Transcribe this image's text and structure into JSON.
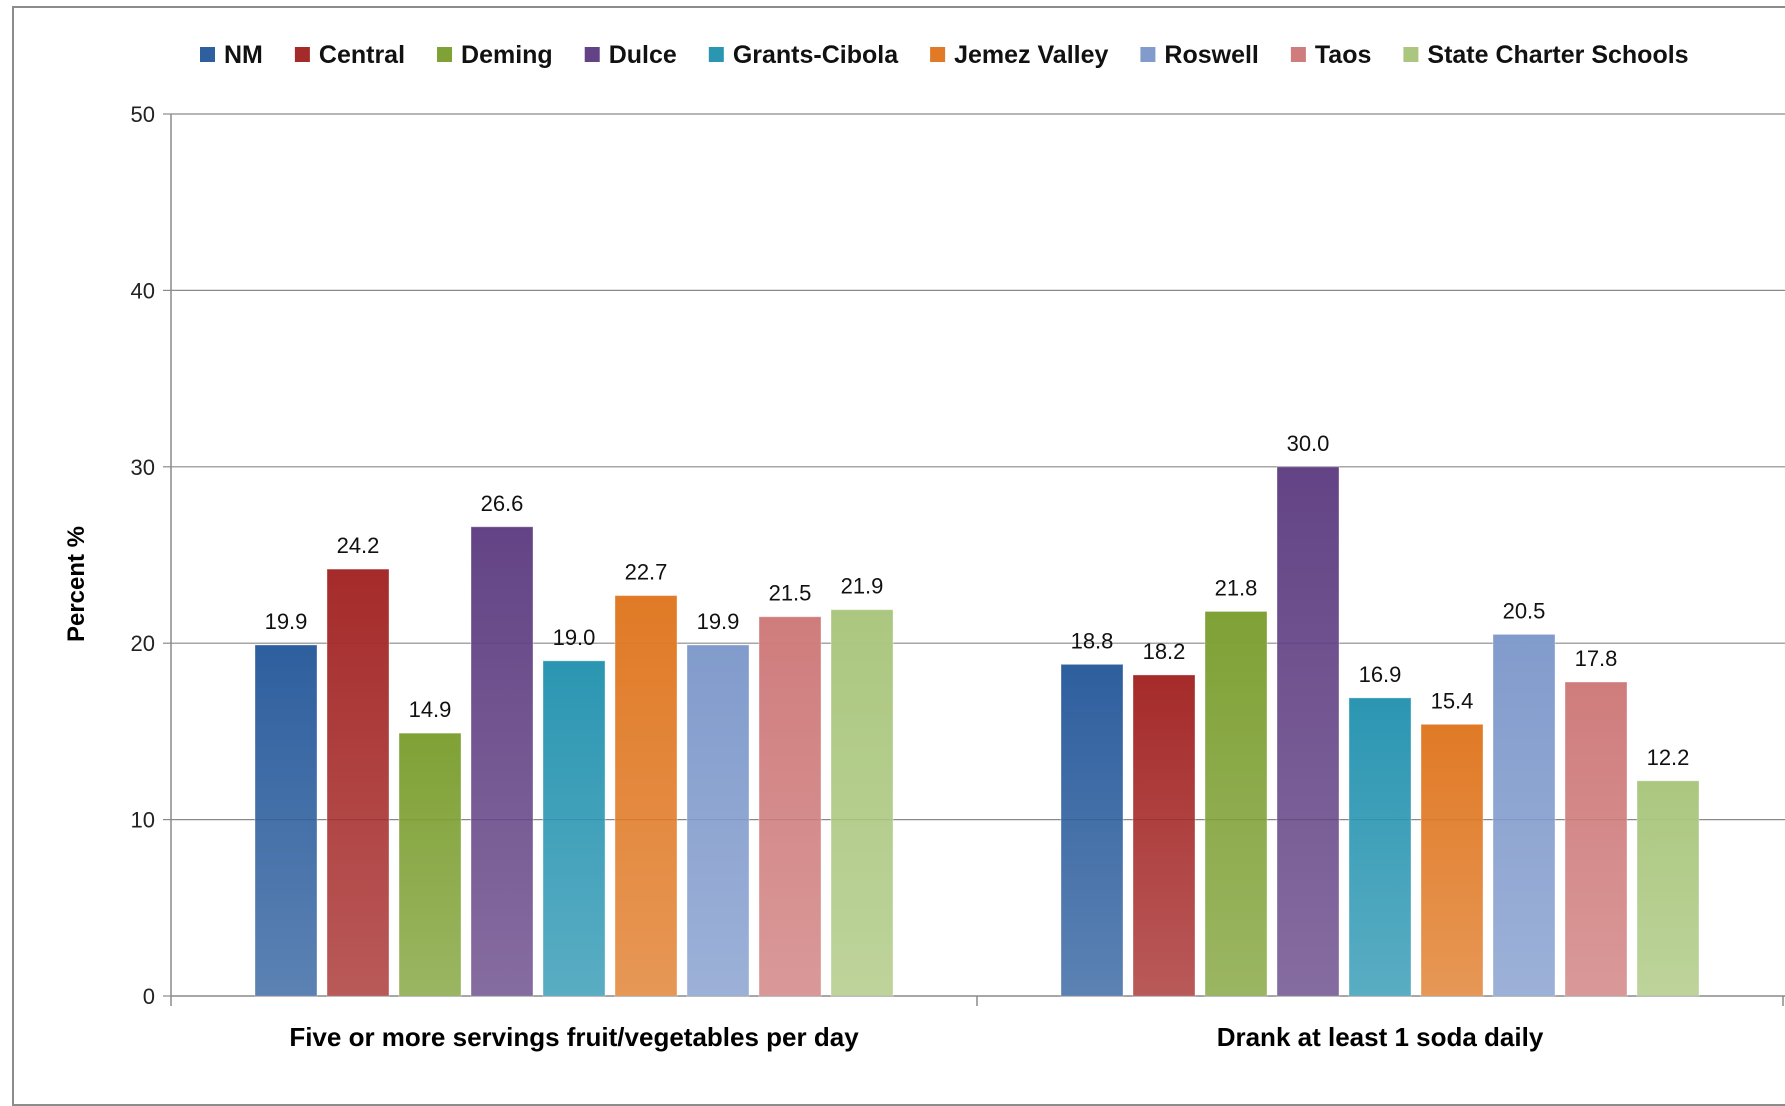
{
  "chart_data": {
    "type": "bar",
    "categories": [
      "Five or more servings fruit/vegetables per day",
      "Drank at least 1 soda daily"
    ],
    "series": [
      {
        "name": "NM",
        "color": "#2e5f9e",
        "values": [
          19.9,
          18.8
        ]
      },
      {
        "name": "Central",
        "color": "#a52b2a",
        "values": [
          24.2,
          18.2
        ]
      },
      {
        "name": "Deming",
        "color": "#7fa136",
        "values": [
          14.9,
          21.8
        ]
      },
      {
        "name": "Dulce",
        "color": "#634385",
        "values": [
          26.6,
          30.0
        ]
      },
      {
        "name": "Grants-Cibola",
        "color": "#2b96b2",
        "values": [
          19.0,
          16.9
        ]
      },
      {
        "name": "Jemez Valley",
        "color": "#e07a26",
        "values": [
          22.7,
          15.4
        ]
      },
      {
        "name": "Roswell",
        "color": "#819bcc",
        "values": [
          19.9,
          20.5
        ]
      },
      {
        "name": "Taos",
        "color": "#cf7c7c",
        "values": [
          21.5,
          17.8
        ]
      },
      {
        "name": "State Charter Schools",
        "color": "#abc77f",
        "values": [
          21.9,
          12.2
        ]
      }
    ],
    "data_labels": [
      [
        "19.9",
        "24.2",
        "14.9",
        "26.6",
        "19.0",
        "22.7",
        "19.9",
        "21.5",
        "21.9"
      ],
      [
        "18.8",
        "18.2",
        "21.8",
        "30.0",
        "16.9",
        "15.4",
        "20.5",
        "17.8",
        "12.2"
      ]
    ],
    "ylabel": "Percent %",
    "xlabel": "",
    "ylim": [
      0,
      50
    ],
    "yticks": [
      "0",
      "10",
      "20",
      "30",
      "40",
      "50"
    ],
    "grid": true,
    "legend_position": "top"
  }
}
